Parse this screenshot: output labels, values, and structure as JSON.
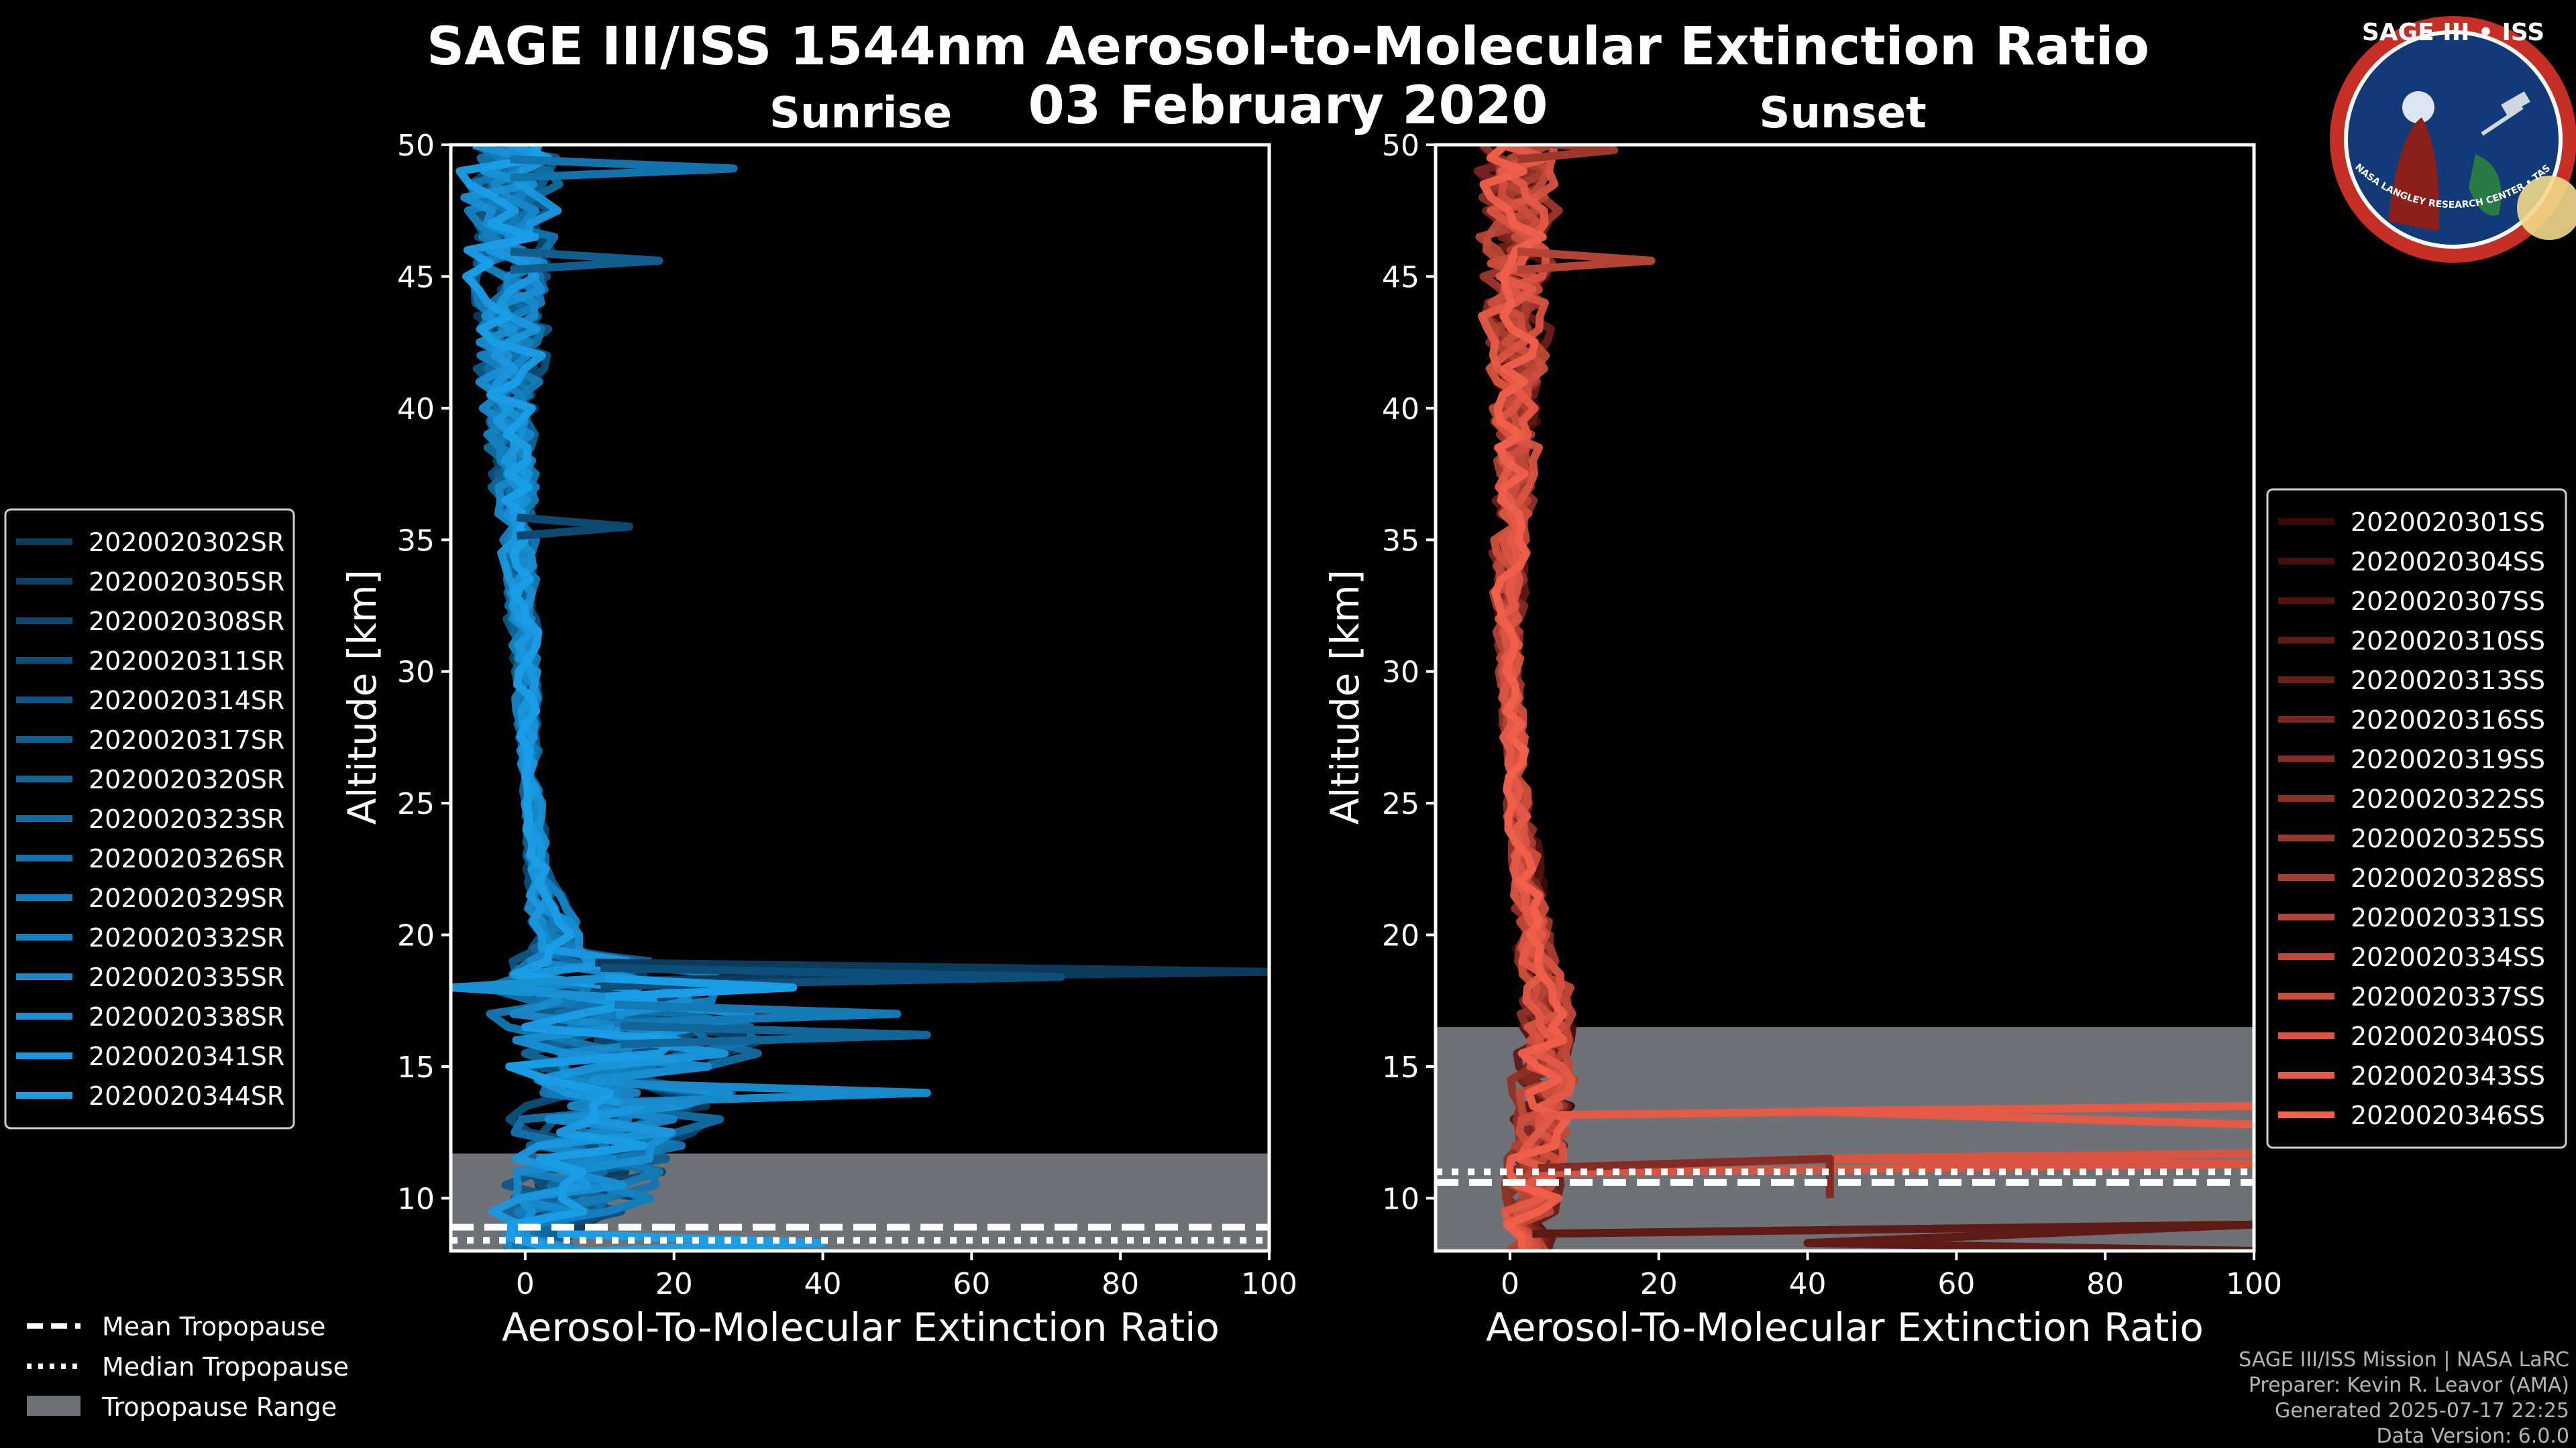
{
  "title": {
    "line1": "SAGE III/ISS 1544nm Aerosol-to-Molecular Extinction Ratio",
    "line2": "03 February 2020"
  },
  "logo": {
    "name": "SAGE III • ISS",
    "ring_text": "BALL • NASA LANGLEY RESEARCH CENTER • TAS-I • ESA"
  },
  "credits": [
    "SAGE III/ISS Mission | NASA LaRC",
    "Preparer: Kevin R. Leavor (AMA)",
    "Generated 2025-07-17 22:25",
    "Data Version: 6.0.0"
  ],
  "tropopause_legend": [
    {
      "label": "Mean Tropopause",
      "style": "dashed"
    },
    {
      "label": "Median Tropopause",
      "style": "dotted"
    },
    {
      "label": "Tropopause Range",
      "style": "patch"
    }
  ],
  "chart_data": [
    {
      "type": "line",
      "title": "Sunrise",
      "xlabel": "Aerosol-To-Molecular Extinction Ratio",
      "ylabel": "Altitude [km]",
      "xlim": [
        -10,
        100
      ],
      "ylim": [
        8,
        50
      ],
      "xticks": [
        0,
        20,
        40,
        60,
        80,
        100
      ],
      "yticks": [
        10,
        15,
        20,
        25,
        30,
        35,
        40,
        45,
        50
      ],
      "color_start": "#0a3a5c",
      "color_end": "#1a9ee8",
      "tropopause": {
        "mean": 8.9,
        "median": 8.4,
        "range": [
          8,
          11.7
        ]
      },
      "legend_position": "left",
      "series_names": [
        "2020020302SR",
        "2020020305SR",
        "2020020308SR",
        "2020020311SR",
        "2020020314SR",
        "2020020317SR",
        "2020020320SR",
        "2020020323SR",
        "2020020326SR",
        "2020020329SR",
        "2020020332SR",
        "2020020335SR",
        "2020020338SR",
        "2020020341SR",
        "2020020344SR"
      ],
      "profile_envelope": [
        {
          "alt": 8,
          "x": 4,
          "spread": 8
        },
        {
          "alt": 9,
          "x": 5,
          "spread": 12
        },
        {
          "alt": 11,
          "x": 8,
          "spread": 14
        },
        {
          "alt": 13,
          "x": 12,
          "spread": 18
        },
        {
          "alt": 15,
          "x": 14,
          "spread": 22
        },
        {
          "alt": 17,
          "x": 12,
          "spread": 22
        },
        {
          "alt": 18.5,
          "x": 10,
          "spread": 20
        },
        {
          "alt": 19.5,
          "x": 4,
          "spread": 6
        },
        {
          "alt": 22,
          "x": 2,
          "spread": 2
        },
        {
          "alt": 25,
          "x": 1,
          "spread": 1.5
        },
        {
          "alt": 30,
          "x": 0,
          "spread": 2
        },
        {
          "alt": 35,
          "x": -1,
          "spread": 3
        },
        {
          "alt": 40,
          "x": -2,
          "spread": 5
        },
        {
          "alt": 45,
          "x": -2,
          "spread": 7
        },
        {
          "alt": 50,
          "x": -2,
          "spread": 9
        }
      ],
      "spikes": [
        {
          "series": 0,
          "alt": 18.6,
          "x": 100
        },
        {
          "series": 3,
          "alt": 18.4,
          "x": 72
        },
        {
          "series": 9,
          "alt": 17.0,
          "x": 50
        },
        {
          "series": 6,
          "alt": 16.2,
          "x": 54
        },
        {
          "series": 11,
          "alt": 14.0,
          "x": 54
        },
        {
          "series": 14,
          "alt": 18.0,
          "x": 36
        },
        {
          "series": 14,
          "alt": 8.3,
          "x": 40
        },
        {
          "series": 12,
          "alt": 18.0,
          "x": -10
        },
        {
          "series": 2,
          "alt": 35.5,
          "x": 14
        },
        {
          "series": 5,
          "alt": 45.6,
          "x": 18
        },
        {
          "series": 8,
          "alt": 49.1,
          "x": 28
        }
      ]
    },
    {
      "type": "line",
      "title": "Sunset",
      "xlabel": "Aerosol-To-Molecular Extinction Ratio",
      "ylabel": "Altitude [km]",
      "xlim": [
        -10,
        100
      ],
      "ylim": [
        8,
        50
      ],
      "xticks": [
        0,
        20,
        40,
        60,
        80,
        100
      ],
      "yticks": [
        10,
        15,
        20,
        25,
        30,
        35,
        40,
        45,
        50
      ],
      "color_start": "#3a0808",
      "color_end": "#f0604a",
      "tropopause": {
        "mean": 10.6,
        "median": 11.0,
        "range": [
          8,
          16.5
        ]
      },
      "legend_position": "right",
      "series_names": [
        "2020020301SS",
        "2020020304SS",
        "2020020307SS",
        "2020020310SS",
        "2020020313SS",
        "2020020316SS",
        "2020020319SS",
        "2020020322SS",
        "2020020325SS",
        "2020020328SS",
        "2020020331SS",
        "2020020334SS",
        "2020020337SS",
        "2020020340SS",
        "2020020343SS",
        "2020020346SS"
      ],
      "profile_envelope": [
        {
          "alt": 8,
          "x": 3,
          "spread": 4
        },
        {
          "alt": 10,
          "x": 3,
          "spread": 5
        },
        {
          "alt": 12,
          "x": 4,
          "spread": 5
        },
        {
          "alt": 15,
          "x": 5,
          "spread": 5
        },
        {
          "alt": 18,
          "x": 5,
          "spread": 4
        },
        {
          "alt": 20,
          "x": 3,
          "spread": 3
        },
        {
          "alt": 25,
          "x": 1,
          "spread": 2
        },
        {
          "alt": 30,
          "x": 0,
          "spread": 2
        },
        {
          "alt": 35,
          "x": 0,
          "spread": 3
        },
        {
          "alt": 40,
          "x": 1,
          "spread": 4
        },
        {
          "alt": 45,
          "x": 1,
          "spread": 6
        },
        {
          "alt": 50,
          "x": 1,
          "spread": 7
        }
      ],
      "spikes": [
        {
          "series": 14,
          "alt": 13.5,
          "x": 100,
          "tail": [
            [
              40,
              13.3
            ],
            [
              100,
              12.8
            ]
          ]
        },
        {
          "series": 13,
          "alt": 11.3,
          "x": 100,
          "tail": [
            [
              40,
              11.5
            ],
            [
              100,
              11.7
            ]
          ]
        },
        {
          "series": 3,
          "alt": 9.0,
          "x": 100,
          "tail": [
            [
              40,
              8.3
            ],
            [
              100,
              8.0
            ]
          ]
        },
        {
          "series": 6,
          "alt": 11.5,
          "x": 43,
          "tail": [
            [
              43,
              10.0
            ]
          ]
        },
        {
          "series": 10,
          "alt": 45.6,
          "x": 19
        },
        {
          "series": 8,
          "alt": 49.8,
          "x": 14
        }
      ]
    }
  ]
}
